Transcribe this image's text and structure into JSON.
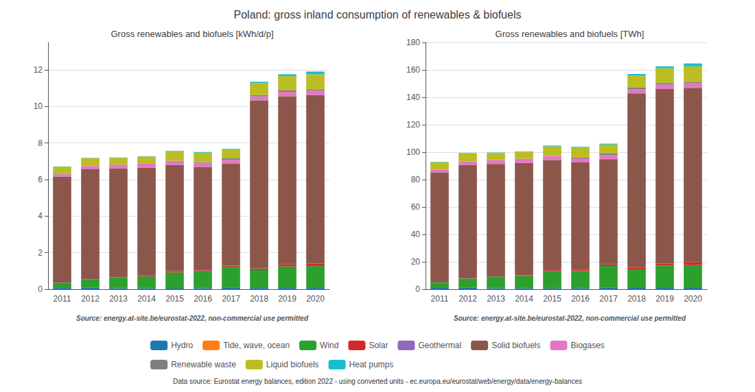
{
  "title": "Poland: gross inland consumption of renewables & biofuels",
  "annotations": [
    "Data source: Eurostat energy balances, edition 2022 - using converted units - ec.europa.eu/eurostat/web/energy/data/energy-balances"
  ],
  "chart_data": [
    {
      "type": "bar",
      "stacked": true,
      "grid": true,
      "legend": "bottom",
      "title": "Gross renewables and biofuels [kWh/d/p]",
      "annotations": [
        "Source: energy.at-site.be/eurostat-2022, non-commercial use permitted"
      ],
      "categories": [
        "2011",
        "2012",
        "2013",
        "2014",
        "2015",
        "2016",
        "2017",
        "2018",
        "2019",
        "2020"
      ],
      "ylim": [
        0,
        13.5
      ],
      "yticks": [
        0,
        2,
        4,
        6,
        8,
        10,
        12
      ],
      "series": [
        {
          "name": "Hydro",
          "color": "#1f77b4",
          "values": [
            0.07,
            0.08,
            0.05,
            0.05,
            0.04,
            0.06,
            0.08,
            0.07,
            0.07,
            0.07
          ]
        },
        {
          "name": "Tide, wave, ocean",
          "color": "#ff7f0e",
          "values": [
            0.0,
            0.0,
            0.0,
            0.0,
            0.0,
            0.0,
            0.0,
            0.0,
            0.0,
            0.0
          ]
        },
        {
          "name": "Wind",
          "color": "#2ca02c",
          "values": [
            0.28,
            0.47,
            0.6,
            0.65,
            0.88,
            0.9,
            1.15,
            0.98,
            1.18,
            1.2
          ]
        },
        {
          "name": "Solar",
          "color": "#d62728",
          "values": [
            0.0,
            0.0,
            0.0,
            0.05,
            0.07,
            0.07,
            0.07,
            0.07,
            0.1,
            0.14
          ]
        },
        {
          "name": "Geothermal",
          "color": "#9467bd",
          "values": [
            0.01,
            0.01,
            0.01,
            0.01,
            0.01,
            0.01,
            0.01,
            0.01,
            0.01,
            0.01
          ]
        },
        {
          "name": "Solid biofuels",
          "color": "#8c564b",
          "values": [
            5.8,
            6.0,
            5.95,
            5.9,
            5.8,
            5.65,
            5.55,
            9.2,
            9.2,
            9.2
          ]
        },
        {
          "name": "Biogases",
          "color": "#e377c2",
          "values": [
            0.13,
            0.17,
            0.2,
            0.22,
            0.22,
            0.22,
            0.22,
            0.22,
            0.24,
            0.24
          ]
        },
        {
          "name": "Renewable waste",
          "color": "#7f7f7f",
          "values": [
            0.01,
            0.01,
            0.01,
            0.01,
            0.01,
            0.04,
            0.08,
            0.08,
            0.08,
            0.08
          ]
        },
        {
          "name": "Liquid biofuels",
          "color": "#bcbd22",
          "values": [
            0.4,
            0.42,
            0.37,
            0.37,
            0.5,
            0.52,
            0.48,
            0.65,
            0.78,
            0.82
          ]
        },
        {
          "name": "Heat pumps",
          "color": "#17becf",
          "values": [
            0.02,
            0.02,
            0.02,
            0.02,
            0.04,
            0.04,
            0.04,
            0.07,
            0.1,
            0.15
          ]
        }
      ]
    },
    {
      "type": "bar",
      "stacked": true,
      "grid": true,
      "legend": "bottom",
      "title": "Gross renewables and biofuels [TWh]",
      "annotations": [
        "Source: energy.at-site.be/eurostat-2022, non-commercial use permitted"
      ],
      "categories": [
        "2011",
        "2012",
        "2013",
        "2014",
        "2015",
        "2016",
        "2017",
        "2018",
        "2019",
        "2020"
      ],
      "ylim": [
        0,
        180
      ],
      "yticks": [
        0,
        20,
        40,
        60,
        80,
        100,
        120,
        140,
        160,
        180
      ],
      "series": [
        {
          "name": "Hydro",
          "color": "#1f77b4",
          "values": [
            1.0,
            1.1,
            0.7,
            0.7,
            0.6,
            0.8,
            1.1,
            1.0,
            1.0,
            1.0
          ]
        },
        {
          "name": "Tide, wave, ocean",
          "color": "#ff7f0e",
          "values": [
            0.0,
            0.0,
            0.0,
            0.0,
            0.0,
            0.0,
            0.0,
            0.0,
            0.0,
            0.0
          ]
        },
        {
          "name": "Wind",
          "color": "#2ca02c",
          "values": [
            3.9,
            6.5,
            8.3,
            9.0,
            12.2,
            12.5,
            15.9,
            13.5,
            16.3,
            16.6
          ]
        },
        {
          "name": "Solar",
          "color": "#d62728",
          "values": [
            0.0,
            0.0,
            0.0,
            0.7,
            1.0,
            1.0,
            1.0,
            1.0,
            1.4,
            1.9
          ]
        },
        {
          "name": "Geothermal",
          "color": "#9467bd",
          "values": [
            0.1,
            0.1,
            0.1,
            0.1,
            0.1,
            0.1,
            0.1,
            0.1,
            0.1,
            0.1
          ]
        },
        {
          "name": "Solid biofuels",
          "color": "#8c564b",
          "values": [
            80.2,
            83.0,
            82.3,
            81.6,
            80.3,
            78.1,
            76.8,
            127.3,
            127.2,
            127.3
          ]
        },
        {
          "name": "Biogases",
          "color": "#e377c2",
          "values": [
            1.8,
            2.4,
            2.8,
            3.0,
            3.0,
            3.0,
            3.0,
            3.0,
            3.3,
            3.3
          ]
        },
        {
          "name": "Renewable waste",
          "color": "#7f7f7f",
          "values": [
            0.1,
            0.1,
            0.1,
            0.1,
            0.1,
            0.6,
            1.1,
            1.1,
            1.1,
            1.1
          ]
        },
        {
          "name": "Liquid biofuels",
          "color": "#bcbd22",
          "values": [
            5.5,
            5.8,
            5.1,
            5.1,
            6.9,
            7.2,
            6.6,
            9.0,
            10.8,
            11.3
          ]
        },
        {
          "name": "Heat pumps",
          "color": "#17becf",
          "values": [
            0.3,
            0.3,
            0.3,
            0.3,
            0.6,
            0.6,
            0.6,
            1.0,
            1.4,
            2.1
          ]
        }
      ]
    }
  ]
}
